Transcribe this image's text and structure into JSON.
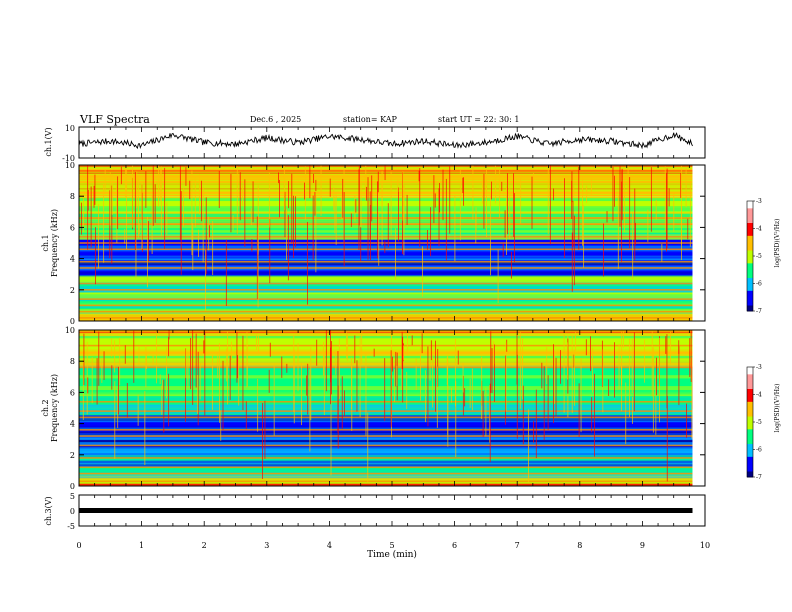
{
  "header": {
    "title": "VLF Spectra",
    "date": "Dec.6 , 2025",
    "station": "station= KAP",
    "start": "start UT =   22: 30: 1"
  },
  "colors": {
    "background": "#ffffff",
    "axis": "#000000",
    "trace": "#000000",
    "colormap": [
      "#00007f",
      "#0000ff",
      "#00bfff",
      "#00ff80",
      "#bfff00",
      "#ffbf00",
      "#ff0000",
      "#ff9999",
      "#ffffff"
    ]
  },
  "chart_data": [
    {
      "type": "line",
      "id": "ch1-voltage",
      "ylabel": "ch.1(V)",
      "ylim": [
        -10,
        10
      ],
      "yticks": [
        -10,
        10
      ],
      "xlim": [
        0,
        10
      ],
      "trace_end_min": 9.8,
      "description_points": "noisy voltage trace oscillating roughly between -6 and 6 V",
      "x": [
        0.0,
        0.5,
        1.0,
        1.5,
        2.0,
        2.5,
        3.0,
        3.5,
        4.0,
        4.5,
        5.0,
        5.5,
        6.0,
        6.5,
        7.0,
        7.5,
        8.0,
        8.5,
        9.0,
        9.5,
        9.8
      ],
      "y": [
        -1,
        1,
        -2,
        5,
        0,
        -1,
        3,
        0,
        4,
        2,
        -1,
        1,
        -2,
        0,
        4,
        -1,
        2,
        1,
        -2,
        5,
        -1
      ]
    },
    {
      "type": "heatmap",
      "id": "ch1-spectrogram",
      "ylabel": "ch.1",
      "ylabel2": "Frequency (kHz)",
      "ylim": [
        0,
        10
      ],
      "yticks": [
        0,
        2,
        4,
        6,
        8,
        10
      ],
      "xlim": [
        0,
        10
      ],
      "data_end_min": 9.8,
      "colorbar": {
        "label": "log(PSD)(V²/Hz)",
        "range": [
          -7,
          -3
        ],
        "ticks": [
          "-3",
          "-4",
          "-5",
          "-6",
          "-7"
        ]
      },
      "bands": [
        {
          "from": 0.0,
          "to": 0.4,
          "level": -3.8
        },
        {
          "from": 0.4,
          "to": 1.2,
          "level": -4.8
        },
        {
          "from": 1.2,
          "to": 2.4,
          "level": -5.2
        },
        {
          "from": 2.4,
          "to": 2.7,
          "level": -4.9
        },
        {
          "from": 2.7,
          "to": 5.2,
          "level": -6.0
        },
        {
          "from": 5.2,
          "to": 6.0,
          "level": -4.8
        },
        {
          "from": 6.0,
          "to": 8.0,
          "level": -4.4
        },
        {
          "from": 8.0,
          "to": 10.0,
          "level": -4.0
        }
      ],
      "lines_khz": [
        0.2,
        0.6,
        1.0,
        1.4,
        2.0,
        2.4,
        3.4,
        3.8,
        4.6,
        5.0,
        5.4,
        6.2,
        6.6,
        9.6
      ]
    },
    {
      "type": "heatmap",
      "id": "ch2-spectrogram",
      "ylabel": "ch.2",
      "ylabel2": "Frequency (kHz)",
      "ylim": [
        0,
        10
      ],
      "yticks": [
        0,
        2,
        4,
        6,
        8,
        10
      ],
      "xlim": [
        0,
        10
      ],
      "data_end_min": 9.8,
      "colorbar": {
        "label": "log(PSD)(V²/Hz)",
        "range": [
          -7,
          -3
        ],
        "ticks": [
          "-3",
          "-4",
          "-5",
          "-6",
          "-7"
        ]
      },
      "bands": [
        {
          "from": 0.0,
          "to": 0.4,
          "level": -3.9
        },
        {
          "from": 0.4,
          "to": 1.2,
          "level": -5.0
        },
        {
          "from": 1.2,
          "to": 2.2,
          "level": -5.6
        },
        {
          "from": 2.2,
          "to": 3.2,
          "level": -6.1
        },
        {
          "from": 3.2,
          "to": 4.4,
          "level": -6.2
        },
        {
          "from": 4.4,
          "to": 5.6,
          "level": -5.2
        },
        {
          "from": 5.6,
          "to": 7.6,
          "level": -4.7
        },
        {
          "from": 7.6,
          "to": 10.0,
          "level": -4.1
        }
      ],
      "lines_khz": [
        0.3,
        0.8,
        1.2,
        1.8,
        2.6,
        3.2,
        3.6,
        4.4,
        4.8,
        5.4,
        7.6,
        9.0
      ]
    },
    {
      "type": "line",
      "id": "ch3-voltage",
      "ylabel": "ch.3(V)",
      "ylim": [
        -5,
        5
      ],
      "yticks": [
        -5,
        0,
        5
      ],
      "xlim": [
        0,
        10
      ],
      "trace_end_min": 9.8,
      "level": 0,
      "xlabel": "Time (min)",
      "xticks": [
        0,
        1,
        2,
        3,
        4,
        5,
        6,
        7,
        8,
        9,
        10
      ]
    }
  ]
}
